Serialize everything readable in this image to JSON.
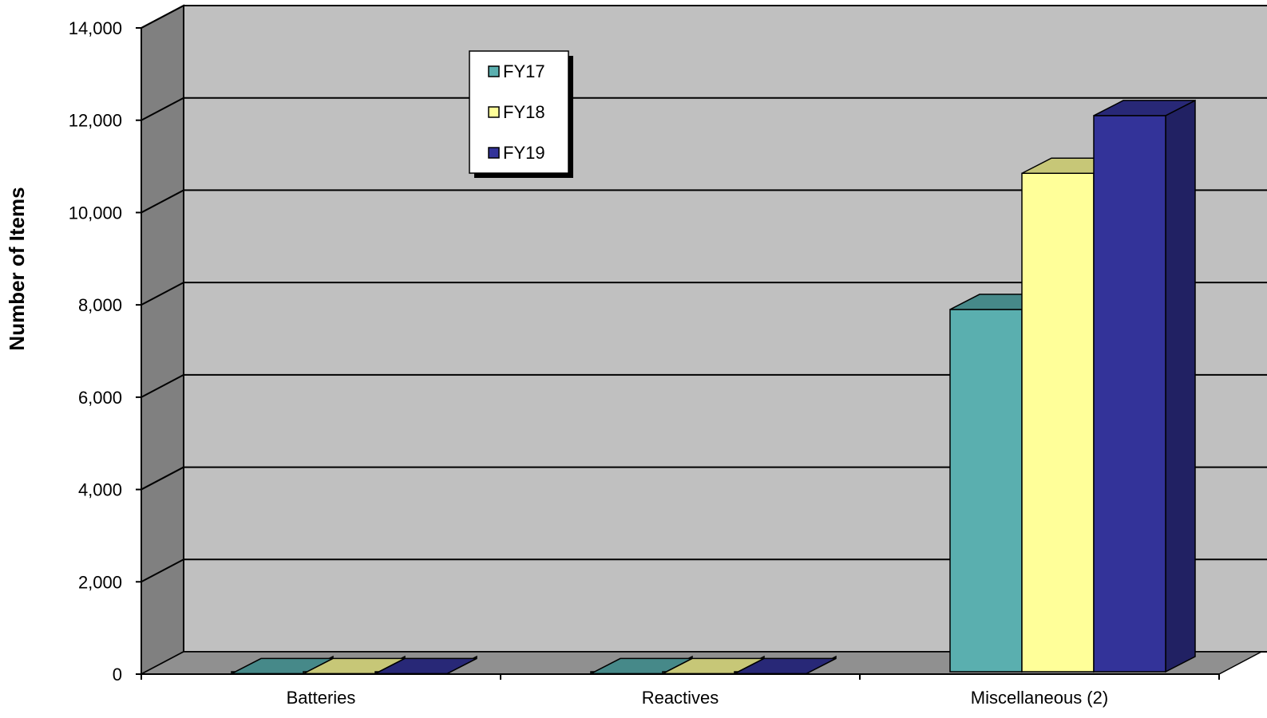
{
  "chart_data": {
    "type": "bar",
    "title": "",
    "xlabel": "",
    "ylabel": "Number of Items",
    "categories": [
      "Batteries",
      "Reactives",
      "Miscellaneous (2)"
    ],
    "series": [
      {
        "name": "FY17",
        "values": [
          10,
          10,
          7900
        ],
        "color": "#5AAFAF"
      },
      {
        "name": "FY18",
        "values": [
          10,
          10,
          10850
        ],
        "color": "#FFFF99"
      },
      {
        "name": "FY19",
        "values": [
          10,
          10,
          12100
        ],
        "color": "#333399"
      }
    ],
    "ylim": [
      0,
      14000
    ],
    "yticks": [
      0,
      2000,
      4000,
      6000,
      8000,
      10000,
      12000,
      14000
    ],
    "ytick_labels": [
      "0",
      "2,000",
      "4,000",
      "6,000",
      "8,000",
      "10,000",
      "12,000",
      "14,000"
    ],
    "grid": true,
    "legend_position": "top-left",
    "three_d": true,
    "colors": {
      "wall": "#C0C0C0",
      "side_wall": "#808080",
      "floor": "#909090"
    }
  }
}
